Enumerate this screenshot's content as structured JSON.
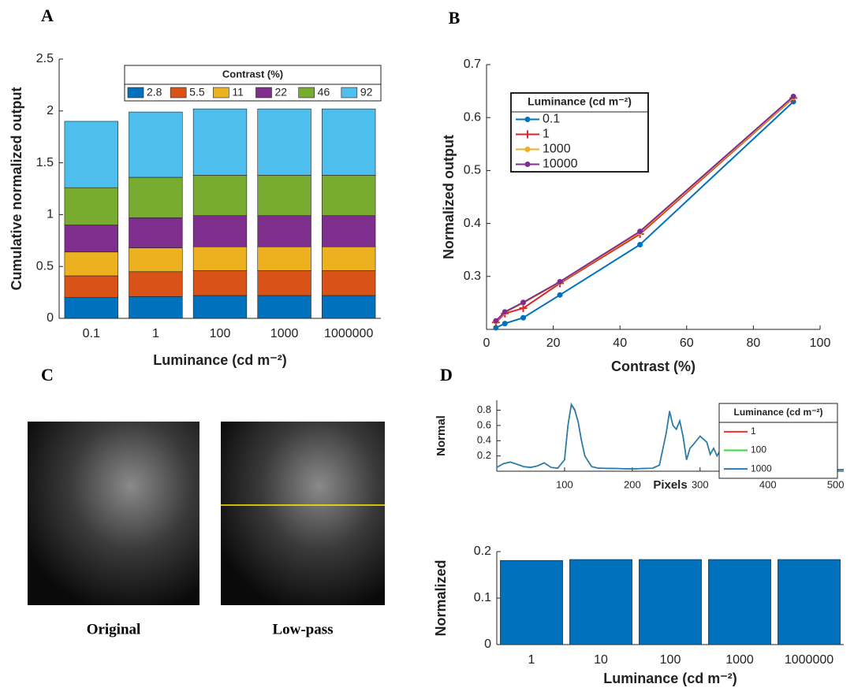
{
  "panels": [
    "A",
    "B",
    "C",
    "D"
  ],
  "images": [
    {
      "caption": "Original"
    },
    {
      "caption": "Low-pass"
    }
  ],
  "chart_data": [
    {
      "type": "stacked_bar",
      "y_label": "Cumulative normalized output",
      "x_label": "Luminance (cd m⁻²)",
      "categories": [
        "0.1",
        "1",
        "100",
        "1000",
        "1000000"
      ],
      "legend_title": "Contrast (%)",
      "series": [
        {
          "name": "2.8",
          "color": "#0072bd",
          "values": [
            0.2,
            0.21,
            0.22,
            0.22,
            0.22
          ]
        },
        {
          "name": "5.5",
          "color": "#d95319",
          "values": [
            0.21,
            0.24,
            0.24,
            0.24,
            0.24
          ]
        },
        {
          "name": "11",
          "color": "#edb120",
          "values": [
            0.23,
            0.23,
            0.23,
            0.23,
            0.23
          ]
        },
        {
          "name": "22",
          "color": "#7e2f8e",
          "values": [
            0.26,
            0.29,
            0.3,
            0.3,
            0.3
          ]
        },
        {
          "name": "46",
          "color": "#77ac30",
          "values": [
            0.36,
            0.39,
            0.39,
            0.39,
            0.39
          ]
        },
        {
          "name": "92",
          "color": "#4dbeee",
          "values": [
            0.64,
            0.63,
            0.64,
            0.64,
            0.64
          ]
        }
      ],
      "ylim": [
        0,
        2.5
      ],
      "yticks": [
        0,
        0.5,
        1,
        1.5,
        2,
        2.5
      ]
    },
    {
      "type": "line",
      "y_label": "Normalized output",
      "x_label": "Contrast (%)",
      "legend_title": "Luminance (cd m⁻²)",
      "x": [
        2.8,
        5.5,
        11,
        22,
        46,
        92
      ],
      "series": [
        {
          "name": "0.1",
          "color": "#0072bd",
          "marker": "circle",
          "values": [
            0.203,
            0.211,
            0.222,
            0.265,
            0.36,
            0.63
          ]
        },
        {
          "name": "1",
          "color": "#d62728",
          "marker": "plus",
          "values": [
            0.213,
            0.23,
            0.24,
            0.287,
            0.38,
            0.637
          ]
        },
        {
          "name": "1000",
          "color": "#edb120",
          "marker": "circle",
          "values": [
            0.215,
            0.232,
            0.25,
            0.289,
            0.383,
            0.638
          ]
        },
        {
          "name": "10000",
          "color": "#7e2f8e",
          "marker": "circle",
          "values": [
            0.216,
            0.233,
            0.251,
            0.29,
            0.385,
            0.64
          ]
        }
      ],
      "xlim": [
        0,
        100
      ],
      "xticks": [
        0,
        20,
        40,
        60,
        80,
        100
      ],
      "ylim": [
        0.2,
        0.7
      ],
      "yticks": [
        0.3,
        0.4,
        0.5,
        0.6,
        0.7
      ]
    },
    {
      "type": "line",
      "y_label": "Normal",
      "x_label": "Pixels",
      "legend_title": "Luminance (cd m⁻²)",
      "x": [
        0,
        10,
        20,
        30,
        40,
        50,
        60,
        70,
        80,
        90,
        100,
        105,
        110,
        115,
        120,
        125,
        130,
        140,
        150,
        200,
        230,
        240,
        250,
        255,
        260,
        265,
        270,
        275,
        280,
        285,
        290,
        300,
        310,
        315,
        320,
        325,
        330,
        335,
        340,
        345,
        350,
        360,
        380,
        400,
        450,
        512
      ],
      "series": [
        {
          "name": "1",
          "color": "#ff2a2a",
          "values": [
            0.05,
            0.1,
            0.12,
            0.09,
            0.06,
            0.05,
            0.07,
            0.11,
            0.05,
            0.04,
            0.15,
            0.6,
            0.88,
            0.81,
            0.65,
            0.4,
            0.2,
            0.06,
            0.04,
            0.03,
            0.04,
            0.08,
            0.5,
            0.79,
            0.6,
            0.55,
            0.66,
            0.45,
            0.15,
            0.3,
            0.35,
            0.46,
            0.38,
            0.22,
            0.3,
            0.2,
            0.28,
            0.33,
            0.25,
            0.12,
            0.06,
            0.04,
            0.03,
            0.02,
            0.02,
            0.02
          ]
        },
        {
          "name": "100",
          "color": "#33dd33",
          "values": [
            0.05,
            0.1,
            0.12,
            0.09,
            0.06,
            0.05,
            0.07,
            0.11,
            0.05,
            0.04,
            0.15,
            0.6,
            0.88,
            0.8,
            0.65,
            0.4,
            0.2,
            0.06,
            0.04,
            0.03,
            0.04,
            0.08,
            0.5,
            0.78,
            0.6,
            0.55,
            0.66,
            0.45,
            0.15,
            0.3,
            0.35,
            0.46,
            0.38,
            0.22,
            0.3,
            0.2,
            0.28,
            0.33,
            0.25,
            0.12,
            0.06,
            0.04,
            0.03,
            0.02,
            0.02,
            0.02
          ]
        },
        {
          "name": "1000",
          "color": "#2a7ab8",
          "values": [
            0.05,
            0.1,
            0.12,
            0.09,
            0.06,
            0.05,
            0.07,
            0.11,
            0.05,
            0.04,
            0.15,
            0.6,
            0.87,
            0.8,
            0.65,
            0.4,
            0.2,
            0.06,
            0.04,
            0.03,
            0.04,
            0.08,
            0.5,
            0.78,
            0.6,
            0.55,
            0.66,
            0.45,
            0.15,
            0.3,
            0.35,
            0.46,
            0.38,
            0.22,
            0.3,
            0.2,
            0.28,
            0.33,
            0.25,
            0.12,
            0.06,
            0.04,
            0.03,
            0.02,
            0.02,
            0.02
          ]
        }
      ],
      "xlim": [
        0,
        512
      ],
      "xticks": [
        100,
        200,
        300,
        400,
        500
      ],
      "ylim": [
        0,
        0.93
      ],
      "yticks": [
        0.2,
        0.4,
        0.6,
        0.8
      ]
    },
    {
      "type": "bar",
      "y_label": "Normalized",
      "x_label": "Luminance (cd m⁻²)",
      "categories": [
        "1",
        "10",
        "100",
        "1000",
        "1000000"
      ],
      "values": [
        0.181,
        0.183,
        0.183,
        0.183,
        0.183
      ],
      "color": "#0072bd",
      "ylim": [
        0,
        0.2
      ],
      "yticks": [
        0,
        0.1,
        0.2
      ]
    }
  ]
}
